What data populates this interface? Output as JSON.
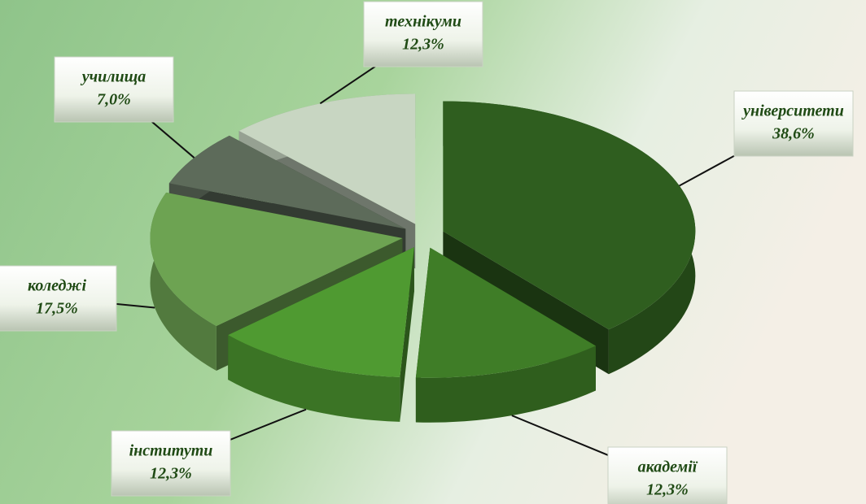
{
  "chart_data": {
    "type": "pie",
    "categories": [
      "університети",
      "академії",
      "інститути",
      "коледжі",
      "училища",
      "технікуми"
    ],
    "values": [
      38.6,
      12.3,
      12.3,
      17.5,
      7.0,
      12.3
    ],
    "value_labels": [
      "38,6%",
      "12,3%",
      "12,3%",
      "17,5%",
      "7,0%",
      "12,3%"
    ],
    "colors": [
      "#2f5e1f",
      "#3f7d27",
      "#4f9a31",
      "#6da352",
      "#5d6b5a",
      "#c8d6c2"
    ]
  }
}
